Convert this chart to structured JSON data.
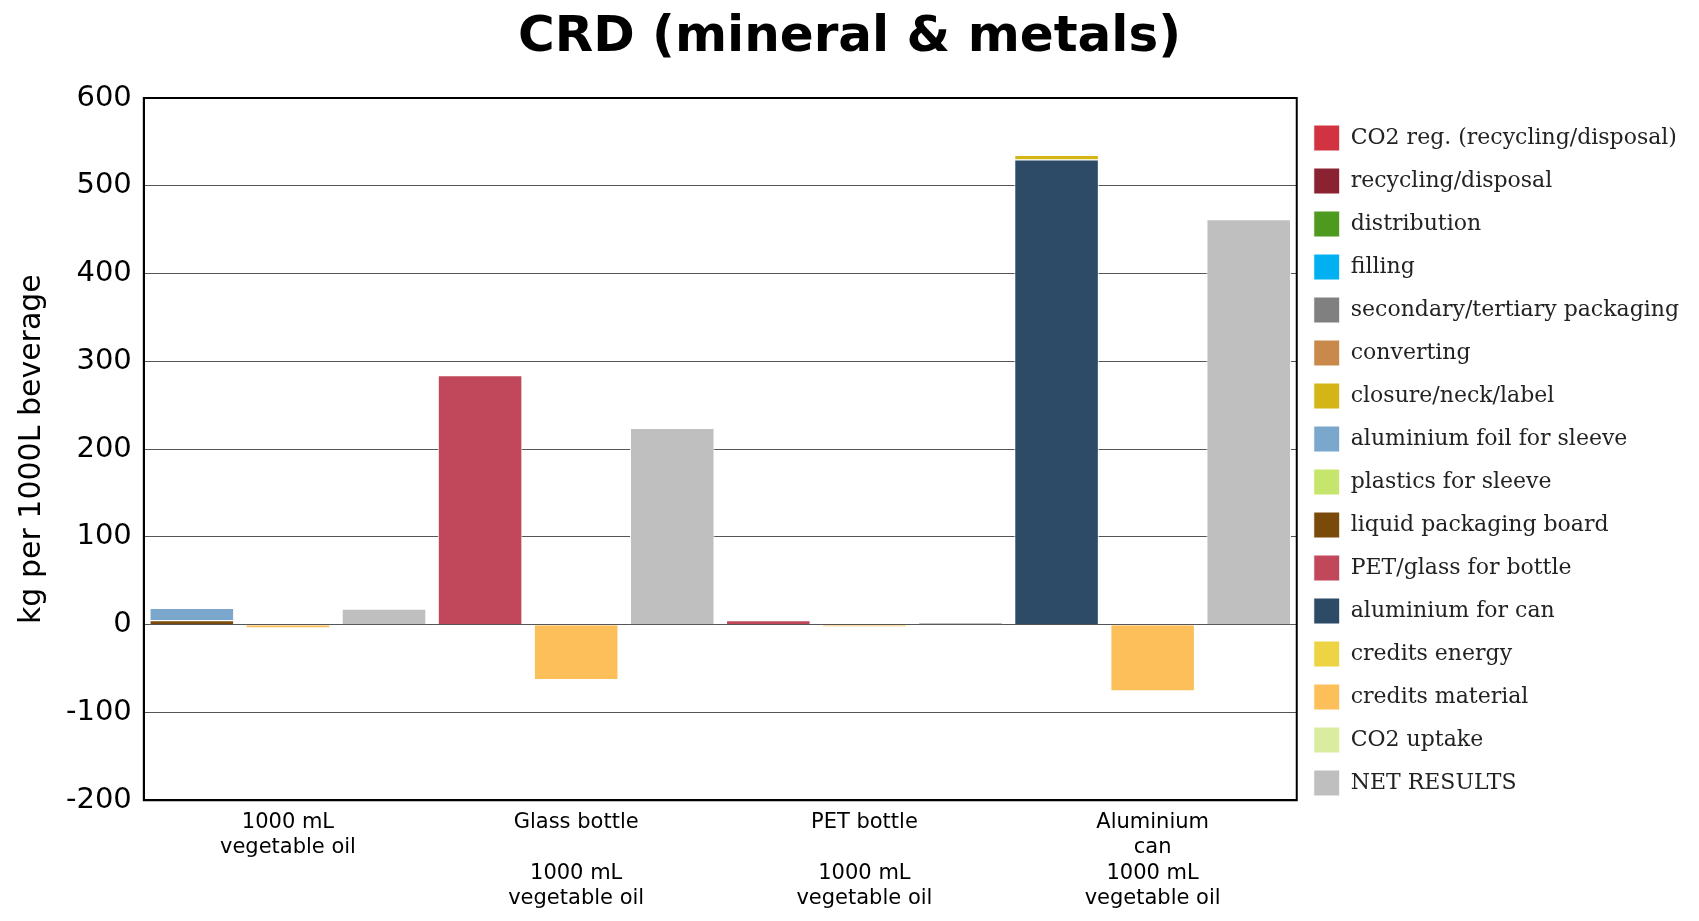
{
  "chart_data": {
    "type": "bar",
    "title": "CRD (mineral & metals)",
    "ylabel": "kg per 1000L beverage",
    "categories": [
      null,
      "1000 mL\nvegetable oil",
      null,
      null,
      "Glass bottle\n\n1000 mL\nvegetable oil",
      null,
      null,
      "PET bottle\n\n1000 mL\nvegetable oil",
      null,
      null,
      "Aluminium\ncan\n1000 mL\nvegetable oil",
      null
    ],
    "stacked": true,
    "ylim": [
      -200,
      600
    ],
    "yticks": [
      -200,
      -100,
      0,
      100,
      200,
      300,
      400,
      500,
      600
    ],
    "grid": "y",
    "legend": "right",
    "series": [
      {
        "name": "NET RESULTS",
        "color": "#bfbfbf",
        "values": [
          null,
          null,
          18,
          null,
          null,
          224,
          null,
          null,
          3,
          null,
          null,
          462
        ]
      },
      {
        "name": "CO2 uptake",
        "color": "#d9eca0",
        "values": [
          null,
          null,
          null,
          null,
          null,
          null,
          null,
          null,
          null,
          null,
          null,
          null
        ]
      },
      {
        "name": "credits material",
        "color": "#fdbf5a",
        "values": [
          null,
          -4,
          null,
          null,
          -63,
          null,
          null,
          -3,
          null,
          null,
          -76,
          null
        ]
      },
      {
        "name": "credits energy",
        "color": "#ecd445",
        "values": [
          null,
          null,
          null,
          null,
          null,
          null,
          null,
          null,
          null,
          null,
          null,
          null
        ]
      },
      {
        "name": "aluminium for can",
        "color": "#2d4a66",
        "values": [
          null,
          null,
          null,
          null,
          null,
          null,
          null,
          null,
          null,
          530,
          null,
          null
        ]
      },
      {
        "name": "PET/glass for bottle",
        "color": "#c0485a",
        "values": [
          null,
          null,
          null,
          284,
          null,
          null,
          5,
          null,
          null,
          null,
          null,
          null
        ]
      },
      {
        "name": "liquid packaging board",
        "color": "#7a4a0a",
        "values": [
          5,
          null,
          null,
          null,
          null,
          null,
          null,
          null,
          null,
          null,
          null,
          null
        ]
      },
      {
        "name": "plastics for sleeve",
        "color": "#c6e56c",
        "values": [
          null,
          null,
          null,
          null,
          null,
          null,
          null,
          null,
          null,
          null,
          null,
          null
        ]
      },
      {
        "name": "aluminium foil for sleeve",
        "color": "#7ba7cc",
        "values": [
          14,
          null,
          null,
          null,
          null,
          null,
          null,
          null,
          null,
          null,
          null,
          null
        ]
      },
      {
        "name": "closure/neck/label",
        "color": "#d4b516",
        "values": [
          null,
          null,
          null,
          null,
          null,
          null,
          null,
          null,
          null,
          5,
          null,
          null
        ]
      },
      {
        "name": "converting",
        "color": "#c8894a",
        "values": [
          null,
          null,
          null,
          null,
          null,
          null,
          null,
          null,
          null,
          null,
          null,
          null
        ]
      },
      {
        "name": "secondary/tertiary packaging",
        "color": "#808080",
        "values": [
          null,
          null,
          null,
          null,
          null,
          null,
          null,
          null,
          null,
          null,
          null,
          null
        ]
      },
      {
        "name": "filling",
        "color": "#00b0f0",
        "values": [
          null,
          null,
          null,
          null,
          null,
          null,
          null,
          null,
          null,
          null,
          null,
          null
        ]
      },
      {
        "name": "distribution",
        "color": "#4e9a1f",
        "values": [
          null,
          null,
          null,
          null,
          null,
          null,
          null,
          null,
          null,
          null,
          null,
          null
        ]
      },
      {
        "name": "recycling/disposal",
        "color": "#8b2231",
        "values": [
          null,
          null,
          null,
          null,
          null,
          null,
          null,
          null,
          null,
          null,
          null,
          null
        ]
      },
      {
        "name": "CO2 reg. (recycling/disposal)",
        "color": "#d13440",
        "values": [
          null,
          null,
          null,
          null,
          null,
          null,
          null,
          null,
          null,
          null,
          null,
          null
        ]
      }
    ]
  }
}
